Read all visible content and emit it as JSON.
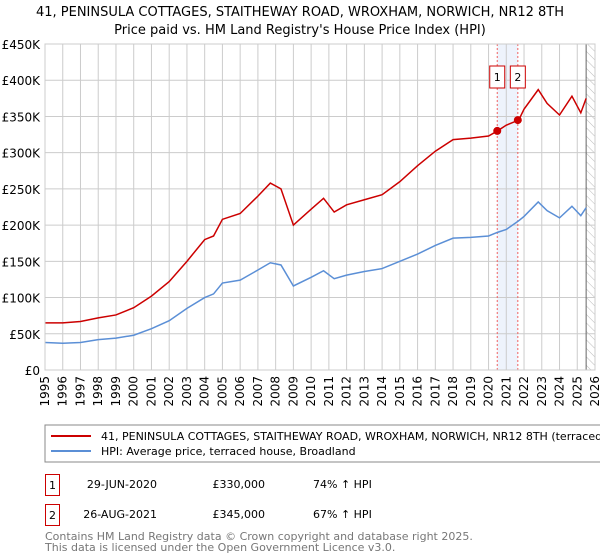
{
  "chart_data": {
    "type": "line",
    "title": "41, PENINSULA COTTAGES, STAITHEWAY ROAD, WROXHAM, NORWICH, NR12 8TH",
    "subtitle": "Price paid vs. HM Land Registry's House Price Index (HPI)",
    "xlim": [
      1995,
      2026
    ],
    "ylim": [
      0,
      450000
    ],
    "grid": true,
    "y_ticks": [
      {
        "v": 0,
        "label": "£0"
      },
      {
        "v": 50000,
        "label": "£50K"
      },
      {
        "v": 100000,
        "label": "£100K"
      },
      {
        "v": 150000,
        "label": "£150K"
      },
      {
        "v": 200000,
        "label": "£200K"
      },
      {
        "v": 250000,
        "label": "£250K"
      },
      {
        "v": 300000,
        "label": "£300K"
      },
      {
        "v": 350000,
        "label": "£350K"
      },
      {
        "v": 400000,
        "label": "£400K"
      },
      {
        "v": 450000,
        "label": "£450K"
      }
    ],
    "x_ticks": [
      "1995",
      "1996",
      "1997",
      "1998",
      "1999",
      "2000",
      "2001",
      "2002",
      "2003",
      "2004",
      "2005",
      "2006",
      "2007",
      "2008",
      "2009",
      "2010",
      "2011",
      "2012",
      "2013",
      "2014",
      "2015",
      "2016",
      "2017",
      "2018",
      "2019",
      "2020",
      "2021",
      "2022",
      "2023",
      "2024",
      "2025",
      "2026"
    ],
    "x": [
      1995,
      1996,
      1997,
      1998,
      1999,
      2000,
      2001,
      2002,
      2003,
      2004,
      2004.5,
      2005,
      2006,
      2007,
      2007.7,
      2008.3,
      2009,
      2010,
      2010.7,
      2011.3,
      2012,
      2013,
      2014,
      2015,
      2016,
      2017,
      2018,
      2019,
      2020,
      2020.5,
      2021,
      2021.7,
      2022,
      2022.8,
      2023.3,
      2024,
      2024.7,
      2025.2,
      2025.5
    ],
    "series": [
      {
        "name": "41, PENINSULA COTTAGES, STAITHEWAY ROAD, WROXHAM, NORWICH, NR12 8TH (terraced house)",
        "color": "#cc0000",
        "values": [
          65000,
          65000,
          67000,
          72000,
          76000,
          86000,
          102000,
          122000,
          150000,
          180000,
          185000,
          208000,
          216000,
          240000,
          258000,
          250000,
          200000,
          222000,
          237000,
          218000,
          228000,
          235000,
          242000,
          260000,
          282000,
          302000,
          318000,
          320000,
          323000,
          330000,
          338000,
          345000,
          360000,
          387000,
          368000,
          352000,
          378000,
          355000,
          375000
        ]
      },
      {
        "name": "HPI: Average price, terraced house, Broadland",
        "color": "#5b8fd6",
        "values": [
          38000,
          37000,
          38000,
          42000,
          44000,
          48000,
          57000,
          68000,
          85000,
          100000,
          105000,
          120000,
          124000,
          138000,
          148000,
          145000,
          116000,
          128000,
          137000,
          126000,
          131000,
          136000,
          140000,
          150000,
          160000,
          172000,
          182000,
          183000,
          185000,
          190000,
          194000,
          206000,
          212000,
          232000,
          220000,
          210000,
          226000,
          213000,
          224000
        ]
      }
    ],
    "shaded_range": [
      2020.49,
      2021.65
    ],
    "hatched_from": 2025.5,
    "sales": [
      {
        "id": "1",
        "x": 2020.49,
        "value": 330000,
        "date": "29-JUN-2020",
        "price": "£330,000",
        "hpi": "74% ↑ HPI"
      },
      {
        "id": "2",
        "x": 2021.65,
        "value": 345000,
        "date": "26-AUG-2021",
        "price": "£345,000",
        "hpi": "67% ↑ HPI"
      }
    ],
    "legend_placement": "bottom"
  },
  "footer": {
    "line1": "Contains HM Land Registry data © Crown copyright and database right 2025.",
    "line2": "This data is licensed under the Open Government Licence v3.0."
  }
}
